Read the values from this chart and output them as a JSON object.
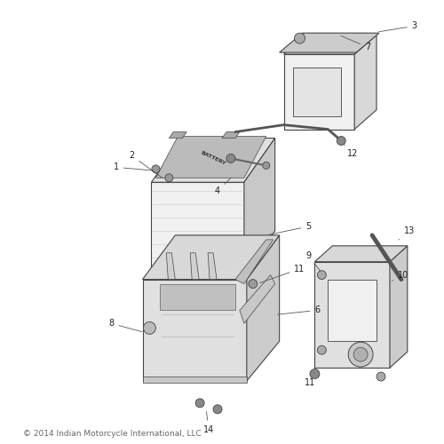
{
  "background_color": "#ffffff",
  "copyright_text": "© 2014 Indian Motorcycle International, LLC",
  "copyright_fontsize": 6.5,
  "lc": "#444444",
  "lw": 0.8
}
